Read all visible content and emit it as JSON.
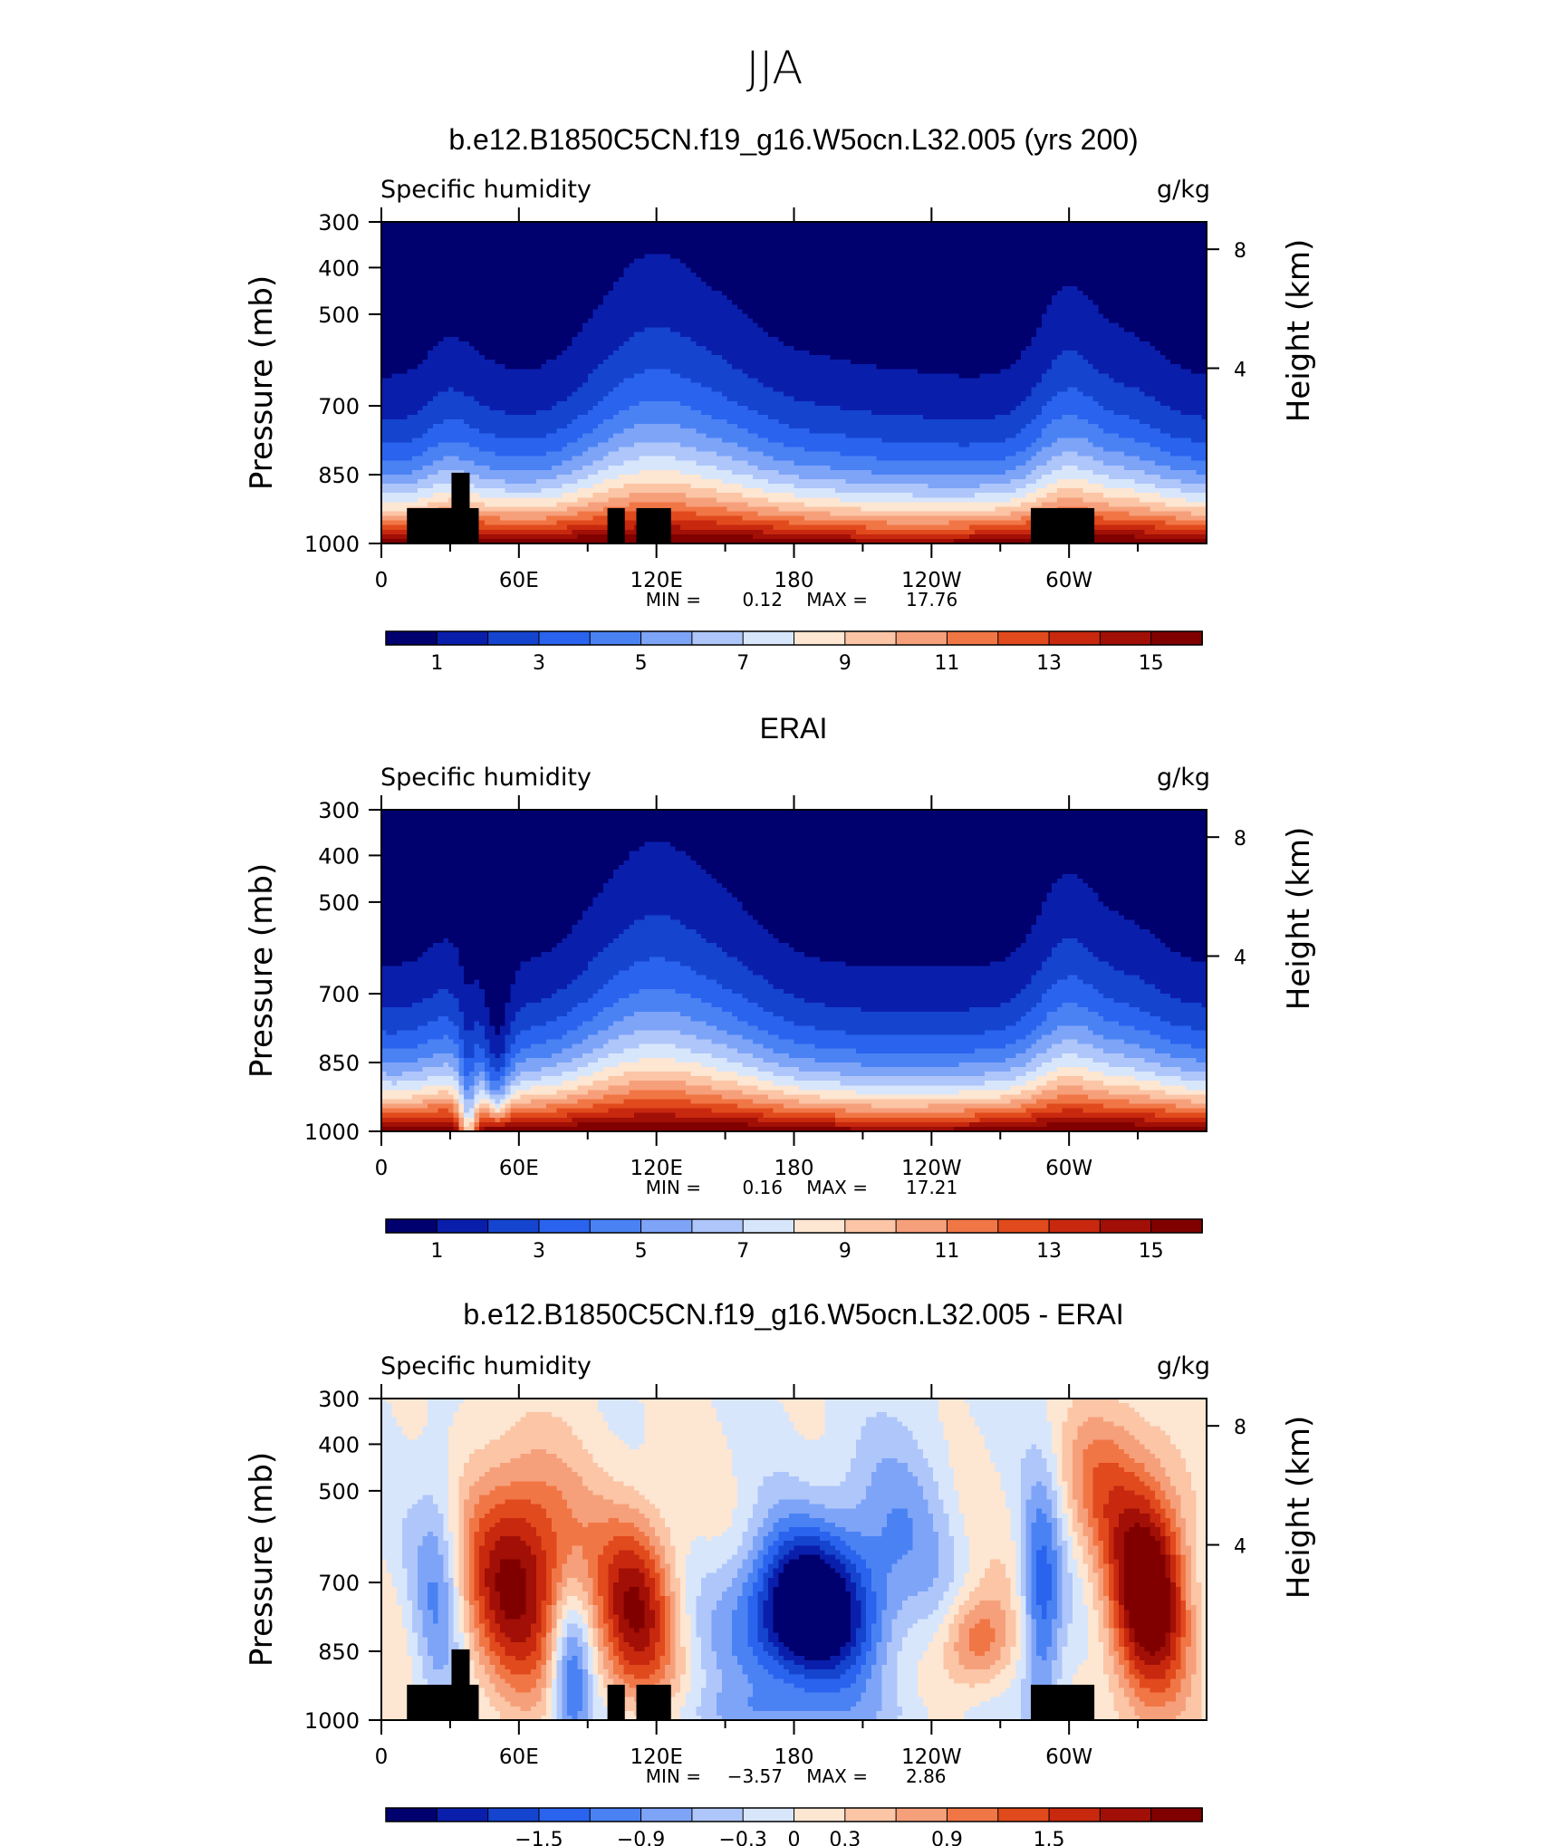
{
  "figure_title": "JJA",
  "palettes": {
    "abs": [
      "#00006e",
      "#0a1eac",
      "#1544cf",
      "#2a63ee",
      "#4a82f4",
      "#7ea4f8",
      "#afc6fa",
      "#d8e6fc",
      "#fde6d2",
      "#fbc5a6",
      "#f6a07b",
      "#f17646",
      "#e14a1c",
      "#c7280e",
      "#a10f06",
      "#800000"
    ],
    "diff": [
      "#00006e",
      "#0a1eac",
      "#1544cf",
      "#2a63ee",
      "#4a82f4",
      "#7ea4f8",
      "#afc6fa",
      "#d8e6fc",
      "#fde6d2",
      "#fbc5a6",
      "#f6a07b",
      "#f17646",
      "#e14a1c",
      "#c7280e",
      "#a10f06",
      "#800000"
    ]
  },
  "chart_data": [
    {
      "type": "heatmap",
      "title": "b.e12.B1850C5CN.f19_g16.W5ocn.L32.005 (yrs 200)",
      "left_string": "Specific humidity",
      "right_string": "g/kg",
      "ylabel": "Pressure (mb)",
      "y2label": "Height (km)",
      "y_ticks": [
        "300",
        "400",
        "500",
        "700",
        "850",
        "1000"
      ],
      "y2_ticks": [
        "8",
        "4"
      ],
      "x_ticks": [
        "0",
        "60E",
        "120E",
        "180",
        "120W",
        "60W"
      ],
      "stats": {
        "min_label": "MIN =",
        "min": "0.12",
        "max_label": "MAX =",
        "max": "17.76"
      },
      "colorbar_labels": [
        "1",
        "3",
        "5",
        "7",
        "9",
        "11",
        "13",
        "15"
      ],
      "levels": [
        1,
        2,
        3,
        4,
        5,
        6,
        7,
        8,
        9,
        10,
        11,
        12,
        13,
        14,
        15
      ],
      "field": "abs",
      "model": 1
    },
    {
      "type": "heatmap",
      "title": "ERAI",
      "left_string": "Specific humidity",
      "right_string": "g/kg",
      "ylabel": "Pressure (mb)",
      "y2label": "Height (km)",
      "y_ticks": [
        "300",
        "400",
        "500",
        "700",
        "850",
        "1000"
      ],
      "y2_ticks": [
        "8",
        "4"
      ],
      "x_ticks": [
        "0",
        "60E",
        "120E",
        "180",
        "120W",
        "60W"
      ],
      "stats": {
        "min_label": "MIN =",
        "min": "0.16",
        "max_label": "MAX =",
        "max": "17.21"
      },
      "colorbar_labels": [
        "1",
        "3",
        "5",
        "7",
        "9",
        "11",
        "13",
        "15"
      ],
      "levels": [
        1,
        2,
        3,
        4,
        5,
        6,
        7,
        8,
        9,
        10,
        11,
        12,
        13,
        14,
        15
      ],
      "field": "abs",
      "model": 0
    },
    {
      "type": "heatmap",
      "title": "b.e12.B1850C5CN.f19_g16.W5ocn.L32.005 - ERAI",
      "left_string": "Specific humidity",
      "right_string": "g/kg",
      "ylabel": "Pressure (mb)",
      "y2label": "Height (km)",
      "y_ticks": [
        "300",
        "400",
        "500",
        "700",
        "850",
        "1000"
      ],
      "y2_ticks": [
        "8",
        "4"
      ],
      "x_ticks": [
        "0",
        "60E",
        "120E",
        "180",
        "120W",
        "60W"
      ],
      "stats": {
        "min_label": "MIN =",
        "min": "−3.57",
        "max_label": "MAX =",
        "max": "2.86"
      },
      "colorbar_labels": [
        "−1.5",
        "−0.9",
        "−0.3",
        "0",
        "0.3",
        "0.9",
        "1.5"
      ],
      "levels": [
        -2.1,
        -1.8,
        -1.5,
        -1.2,
        -0.9,
        -0.6,
        -0.3,
        0,
        0.3,
        0.6,
        0.9,
        1.2,
        1.5,
        1.8,
        2.1
      ],
      "field": "diff",
      "model": 1
    }
  ]
}
